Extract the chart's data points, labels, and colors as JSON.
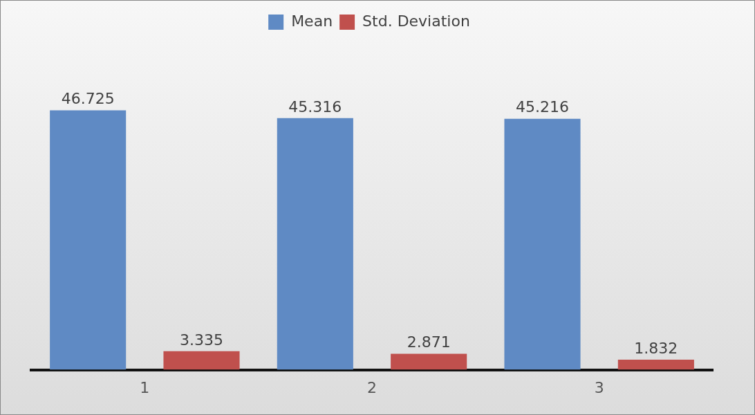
{
  "chart_data": {
    "type": "bar",
    "categories": [
      "1",
      "2",
      "3"
    ],
    "series": [
      {
        "name": "Mean",
        "color": "#5f8ac4",
        "values": [
          46.725,
          45.316,
          45.216
        ]
      },
      {
        "name": "Std. Deviation",
        "color": "#c0504d",
        "values": [
          3.335,
          2.871,
          1.832
        ]
      }
    ],
    "relative": false,
    "data_labels": true,
    "legend": "top",
    "grid": false
  }
}
